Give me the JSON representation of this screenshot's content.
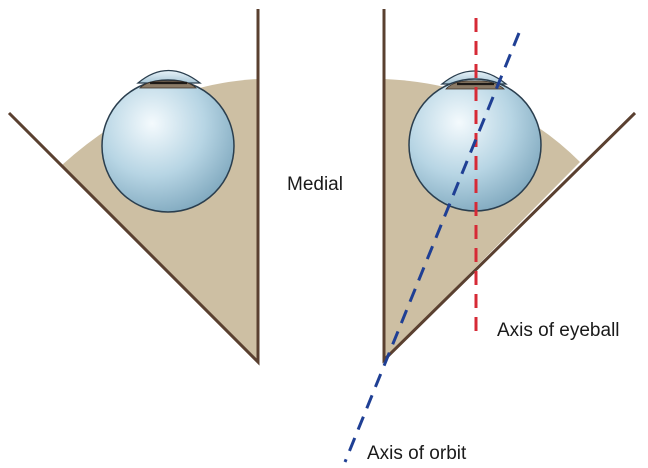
{
  "labels": {
    "medial": "Medial",
    "axis_of_eyeball": "Axis of eyeball",
    "axis_of_orbit": "Axis of orbit"
  },
  "colors": {
    "orbit_fat": "#cdbfa3",
    "orbit_wall": "#5a4030",
    "eyeball_light": "#f4fafd",
    "eyeball_mid": "#b7d5e4",
    "eyeball_dark": "#7fa8be",
    "eyeball_outline": "#2a3e4e",
    "axis_eyeball_line": "#d62a36",
    "axis_orbit_line": "#1f3f94"
  }
}
